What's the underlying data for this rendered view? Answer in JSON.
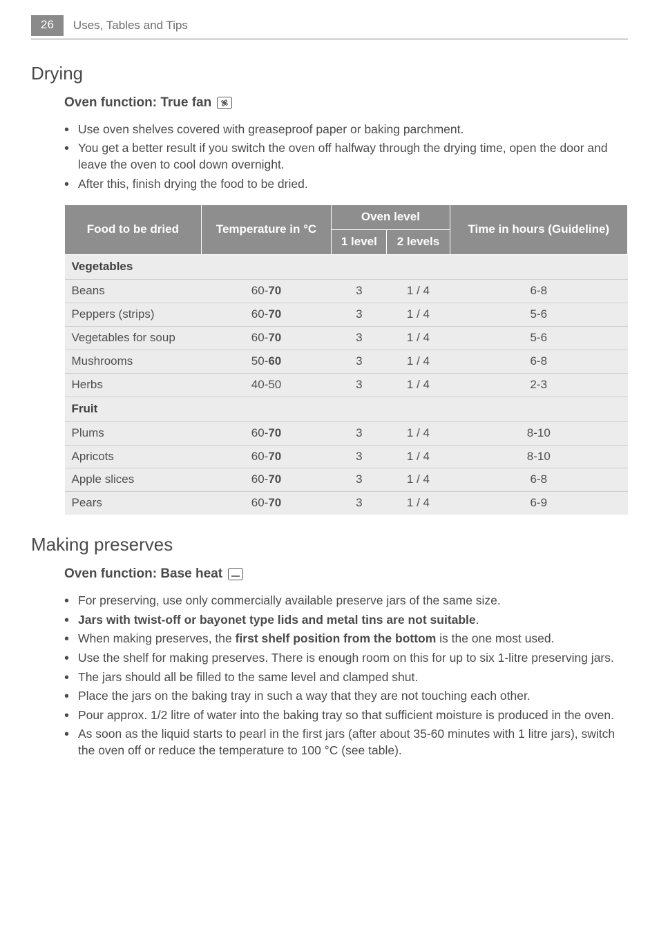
{
  "header": {
    "page_number": "26",
    "title": "Uses, Tables and Tips"
  },
  "drying": {
    "heading": "Drying",
    "subheading_prefix": "Oven function: True fan ",
    "bullets": [
      "Use oven shelves covered with greaseproof paper or baking parchment.",
      "You get a better result if you switch the oven off halfway through the drying time, open the door and leave the oven to cool down overnight.",
      "After this, finish drying the food to be dried."
    ],
    "table": {
      "head": {
        "food": "Food to be dried",
        "temp": "Temperature in °C",
        "oven_level": "Oven level",
        "l1": "1 level",
        "l2": "2 levels",
        "time": "Time in hours (Guideline)"
      },
      "sections": [
        {
          "label": "Vegetables",
          "rows": [
            {
              "food": "Beans",
              "temp_lo": "60-",
              "temp_hi": "70",
              "l1": "3",
              "l2": "1 / 4",
              "time": "6-8"
            },
            {
              "food": "Peppers (strips)",
              "temp_lo": "60-",
              "temp_hi": "70",
              "l1": "3",
              "l2": "1 / 4",
              "time": "5-6"
            },
            {
              "food": "Vegetables for soup",
              "temp_lo": "60-",
              "temp_hi": "70",
              "l1": "3",
              "l2": "1 / 4",
              "time": "5-6"
            },
            {
              "food": "Mushrooms",
              "temp_lo": "50-",
              "temp_hi": "60",
              "l1": "3",
              "l2": "1 / 4",
              "time": "6-8"
            },
            {
              "food": "Herbs",
              "temp_lo": "40-50",
              "temp_hi": "",
              "l1": "3",
              "l2": "1 / 4",
              "time": "2-3"
            }
          ]
        },
        {
          "label": "Fruit",
          "rows": [
            {
              "food": "Plums",
              "temp_lo": "60-",
              "temp_hi": "70",
              "l1": "3",
              "l2": "1 / 4",
              "time": "8-10"
            },
            {
              "food": "Apricots",
              "temp_lo": "60-",
              "temp_hi": "70",
              "l1": "3",
              "l2": "1 / 4",
              "time": "8-10"
            },
            {
              "food": "Apple slices",
              "temp_lo": "60-",
              "temp_hi": "70",
              "l1": "3",
              "l2": "1 / 4",
              "time": "6-8"
            },
            {
              "food": "Pears",
              "temp_lo": "60-",
              "temp_hi": "70",
              "l1": "3",
              "l2": "1 / 4",
              "time": "6-9"
            }
          ]
        }
      ]
    }
  },
  "preserves": {
    "heading": "Making preserves",
    "subheading_prefix": "Oven function: Base heat ",
    "bullets": [
      {
        "pre": "For preserving, use only commercially available preserve jars of the same size.",
        "bold": "",
        "post": ""
      },
      {
        "pre": "",
        "bold": "Jars with twist-off or bayonet type lids and metal tins are not suitable",
        "post": "."
      },
      {
        "pre": "When making preserves, the ",
        "bold": "first shelf position from the bottom",
        "post": " is the one most used."
      },
      {
        "pre": "Use the shelf for making preserves. There is enough room on this for up to six 1-litre preserving jars.",
        "bold": "",
        "post": ""
      },
      {
        "pre": "The jars should all be filled to the same level and clamped shut.",
        "bold": "",
        "post": ""
      },
      {
        "pre": "Place the jars on the baking tray in such a way that they are not touching each other.",
        "bold": "",
        "post": ""
      },
      {
        "pre": "Pour approx. 1/2 litre of water into the baking tray so that sufficient moisture is produced in the oven.",
        "bold": "",
        "post": ""
      },
      {
        "pre": "As soon as the liquid starts to pearl in the first jars (after about 35-60 minutes with 1 litre jars), switch the oven off or reduce the temperature to 100 °C (see table).",
        "bold": "",
        "post": ""
      }
    ]
  }
}
